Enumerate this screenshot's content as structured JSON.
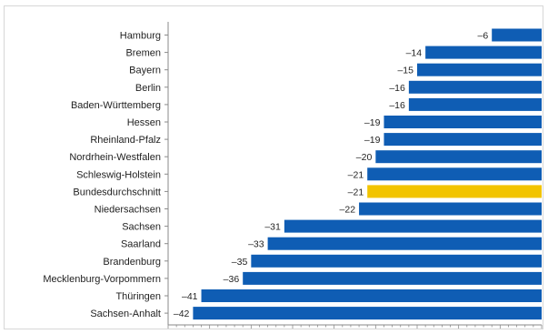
{
  "chart_data": {
    "type": "bar",
    "orientation": "horizontal",
    "title": "",
    "xlabel": "",
    "ylabel": "",
    "xlim": [
      -45,
      0
    ],
    "grid": false,
    "categories": [
      "Hamburg",
      "Bremen",
      "Bayern",
      "Berlin",
      "Baden-Württemberg",
      "Hessen",
      "Rheinland-Pfalz",
      "Nordrhein-Westfalen",
      "Schleswig-Holstein",
      "Bundesdurchschnitt",
      "Niedersachsen",
      "Sachsen",
      "Saarland",
      "Brandenburg",
      "Mecklenburg-Vorpommern",
      "Thüringen",
      "Sachsen-Anhalt"
    ],
    "values": [
      -6,
      -14,
      -15,
      -16,
      -16,
      -19,
      -19,
      -20,
      -21,
      -21,
      -22,
      -31,
      -33,
      -35,
      -36,
      -41,
      -42
    ],
    "value_labels": [
      "–6",
      "–14",
      "–15",
      "–16",
      "–16",
      "–19",
      "–19",
      "–20",
      "–21",
      "–21",
      "–22",
      "–31",
      "–33",
      "–35",
      "–36",
      "–41",
      "–42"
    ],
    "highlight_category": "Bundesdurchschnitt",
    "colors": {
      "bar": "#0f5db4",
      "highlight": "#f2c400",
      "axis": "#8a8a8a"
    }
  }
}
